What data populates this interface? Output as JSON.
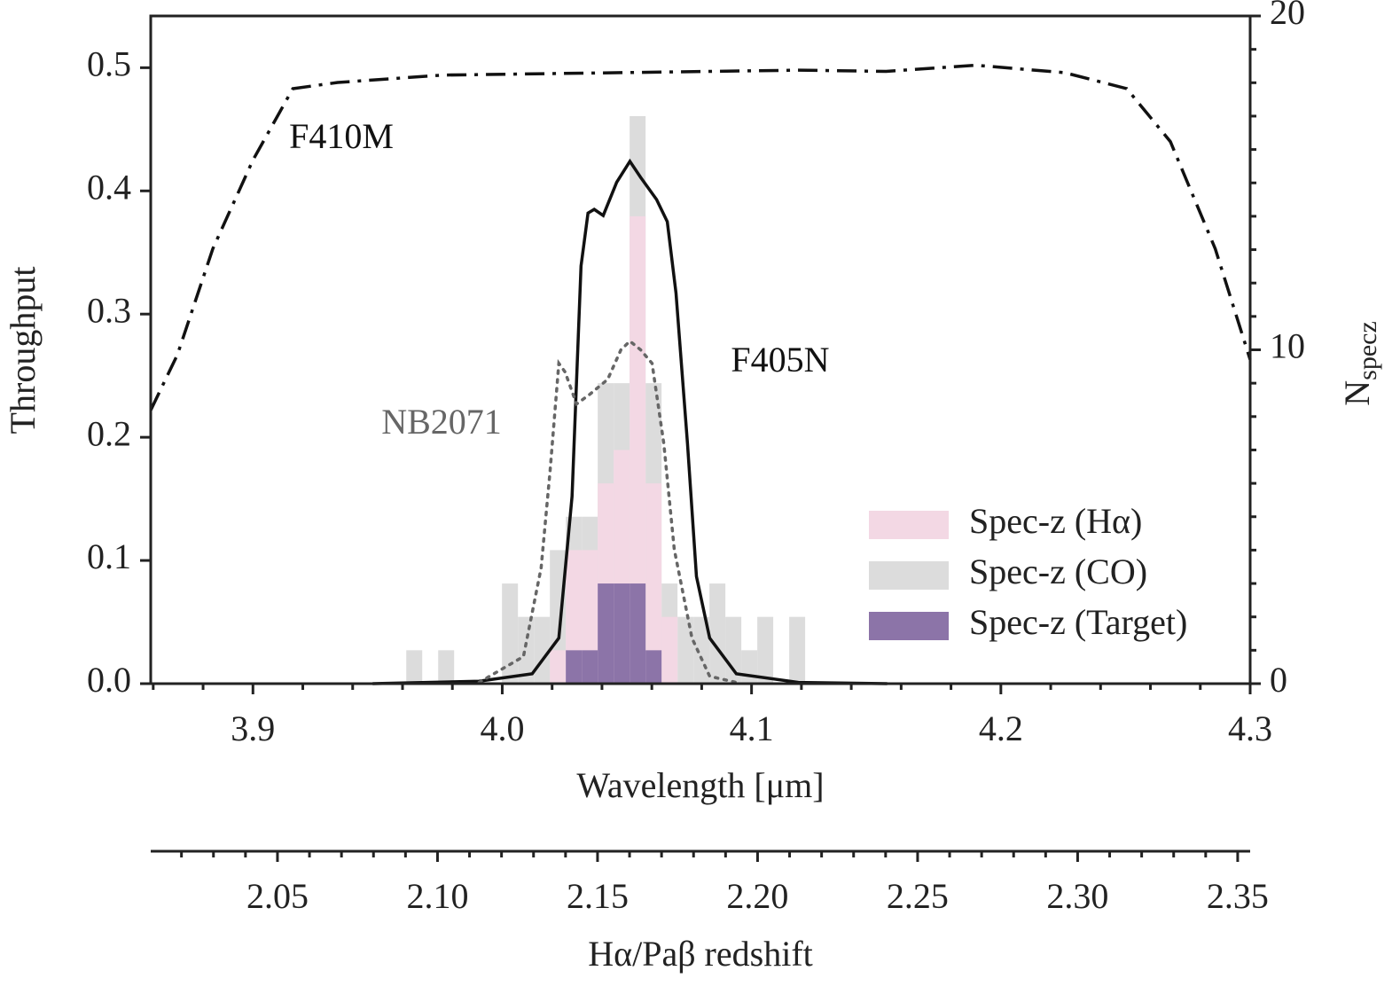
{
  "chart_data": {
    "type": "histogram",
    "xlabel": "Wavelength [μm]",
    "ylabel": "Throughput",
    "y2label": "N",
    "y2label_subscript": "specz",
    "x2label": "Hα/Paβ redshift",
    "xlim": [
      3.859,
      4.3
    ],
    "xticks": [
      3.9,
      {
        "value": 4.0,
        "label": "4.0"
      },
      4.1,
      4.2,
      4.3
    ],
    "ylim": [
      0,
      0.542
    ],
    "yticks": [
      {
        "value": 0,
        "label": "0.0"
      },
      0.1,
      0.2,
      0.3,
      0.4,
      0.5
    ],
    "y2lim": [
      0,
      20
    ],
    "y2ticks": [
      0,
      10,
      20
    ],
    "x2lim": [
      2.0104,
      2.3539
    ],
    "x2ticks": [
      2.05,
      {
        "value": 2.1,
        "label": "2.10"
      },
      2.15,
      {
        "value": 2.2,
        "label": "2.20"
      },
      2.25,
      {
        "value": 2.3,
        "label": "2.30"
      },
      2.35
    ],
    "bins": [
      3.9615,
      3.9679,
      3.9743,
      3.9807,
      3.9871,
      3.9935,
      3.9999,
      4.0063,
      4.0127,
      4.0191,
      4.0255,
      4.0319,
      4.0383,
      4.0447,
      4.0511,
      4.0575,
      4.0639,
      4.0703,
      4.0767,
      4.0831,
      4.0895,
      4.0959,
      4.1023,
      4.1087,
      4.1151,
      4.1215
    ],
    "series": [
      {
        "name": "Spec-z (CO)",
        "color": "#dcdcdc",
        "axis": "y2",
        "values": [
          1,
          0,
          1,
          0,
          0,
          0,
          3,
          2,
          2,
          4,
          5,
          5,
          9,
          9,
          17,
          9,
          3,
          2,
          2,
          3,
          2,
          1,
          2,
          0,
          2
        ]
      },
      {
        "name": "Spec-z (Hα)",
        "color": "#f3d8e4",
        "axis": "y2",
        "values": [
          0,
          0,
          0,
          0,
          0,
          0,
          0,
          0,
          0,
          1,
          4,
          4,
          6,
          7,
          14,
          6,
          2,
          0,
          0,
          0,
          0,
          0,
          0,
          0,
          0
        ]
      },
      {
        "name": "Spec-z (Target)",
        "color": "#8c74a8",
        "axis": "y2",
        "values": [
          0,
          0,
          0,
          0,
          0,
          0,
          0,
          0,
          0,
          0,
          1,
          1,
          3,
          3,
          3,
          1,
          0,
          0,
          0,
          0,
          0,
          0,
          0,
          0,
          0
        ]
      }
    ],
    "legend_order": [
      1,
      0,
      2
    ],
    "legend": "lower right",
    "lines": [
      {
        "name": "F410M",
        "color": "#111111",
        "style": "dashdot",
        "x": [
          3.859,
          3.8697,
          3.8839,
          3.9,
          3.916,
          3.934,
          3.976,
          4.048,
          4.119,
          4.154,
          4.19,
          4.2255,
          4.2505,
          4.268,
          4.286,
          4.3
        ],
        "values": [
          0.222,
          0.267,
          0.353,
          0.425,
          0.483,
          0.488,
          0.494,
          0.496,
          0.498,
          0.497,
          0.502,
          0.496,
          0.483,
          0.44,
          0.353,
          0.263
        ]
      },
      {
        "name": "F405N",
        "color": "#111111",
        "style": "solid",
        "x": [
          3.948,
          3.9907,
          4.012,
          4.0227,
          4.028,
          4.0316,
          4.0344,
          4.0369,
          4.0405,
          4.0459,
          4.0512,
          4.0555,
          4.0619,
          4.0662,
          4.0697,
          4.0743,
          4.0779,
          4.0832,
          4.0939,
          4.1188,
          4.1544
        ],
        "values": [
          0,
          0.002,
          0.008,
          0.037,
          0.152,
          0.339,
          0.382,
          0.385,
          0.38,
          0.407,
          0.424,
          0.411,
          0.393,
          0.375,
          0.317,
          0.195,
          0.087,
          0.037,
          0.008,
          0.001,
          0
        ]
      },
      {
        "name": "NB2071",
        "color": "#666666",
        "style": "dotted",
        "x": [
          3.9907,
          4.0085,
          4.0156,
          4.0192,
          4.0227,
          4.0252,
          4.0298,
          4.0352,
          4.0423,
          4.0476,
          4.0512,
          4.0555,
          4.0601,
          4.0648,
          4.069,
          4.0761,
          4.0832,
          4.0939
        ],
        "values": [
          0.001,
          0.022,
          0.094,
          0.173,
          0.26,
          0.253,
          0.227,
          0.235,
          0.247,
          0.271,
          0.278,
          0.271,
          0.26,
          0.195,
          0.109,
          0.037,
          0.006,
          0.001
        ]
      }
    ]
  }
}
